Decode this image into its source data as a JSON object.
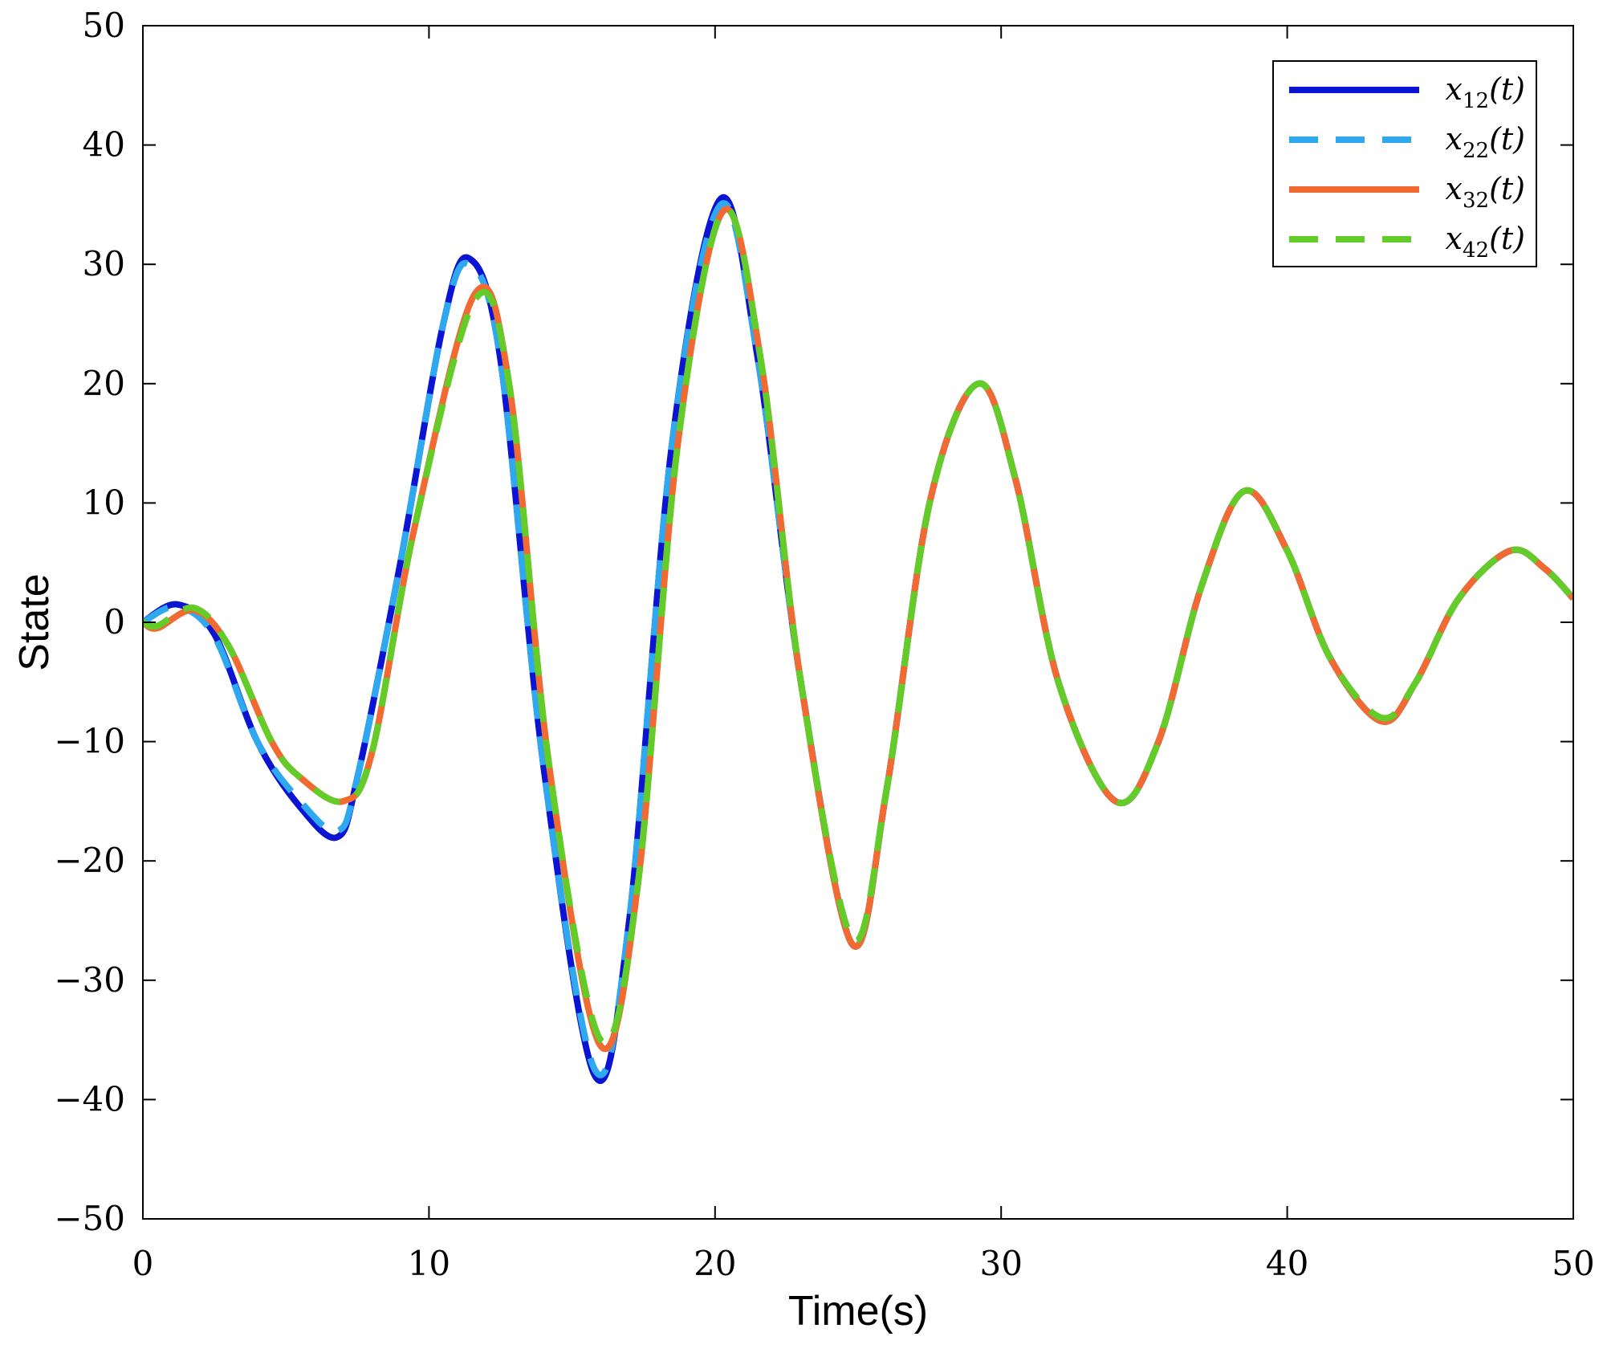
{
  "chart_data": {
    "type": "line",
    "xlabel": "Time(s)",
    "ylabel": "State",
    "xlim": [
      0,
      50
    ],
    "ylim": [
      -50,
      50
    ],
    "xticks": [
      "0",
      "10",
      "20",
      "30",
      "40",
      "50"
    ],
    "yticks": [
      "50",
      "40",
      "30",
      "20",
      "10",
      "0",
      "−10",
      "−20",
      "−30",
      "−40",
      "−50"
    ],
    "grid": false,
    "legend_position": "top-right",
    "series": [
      {
        "name": "x12(t)",
        "label_main": "x",
        "label_sub": "12",
        "label_tail": "(t)",
        "color": "#0a14d2",
        "dash": "solid",
        "x": [
          0,
          1.2,
          2.5,
          4,
          5.5,
          6.8,
          7.5,
          9,
          10.5,
          11.4,
          12.5,
          14,
          15.8,
          17,
          18.5,
          20.2,
          21.5,
          23,
          24.8,
          26,
          27.5,
          29.2,
          30.5,
          32,
          34,
          35.5,
          37,
          38.5,
          40,
          41.5,
          43.3,
          44.5,
          46,
          47.8,
          49,
          50
        ],
        "y": [
          0,
          1.5,
          -1,
          -10,
          -15.5,
          -18,
          -13,
          5,
          25,
          30.5,
          22,
          -12,
          -38,
          -25,
          15,
          35.5,
          22,
          -5,
          -27,
          -14,
          10,
          20,
          12,
          -5,
          -15,
          -10,
          3,
          11,
          6,
          -3,
          -8.3,
          -5,
          2,
          6,
          4.5,
          2
        ]
      },
      {
        "name": "x22(t)",
        "label_main": "x",
        "label_sub": "22",
        "label_tail": "(t)",
        "color": "#2ea8ee",
        "dash": "dashed",
        "x": [
          0,
          1.2,
          2.5,
          4,
          5.5,
          6.8,
          7.5,
          9,
          10.5,
          11.4,
          12.5,
          14,
          15.8,
          17,
          18.5,
          20.2,
          21.5,
          23,
          24.8,
          26,
          27.5,
          29.2,
          30.5,
          32,
          34,
          35.5,
          37,
          38.5,
          40,
          41.5,
          43.3,
          44.5,
          46,
          47.8,
          49,
          50
        ],
        "y": [
          0,
          1.3,
          -1.2,
          -10,
          -15,
          -17.5,
          -13,
          5,
          25,
          30,
          22,
          -12,
          -37.5,
          -25,
          15,
          35,
          22,
          -5,
          -27,
          -14,
          10,
          20,
          12,
          -5,
          -15,
          -10,
          3,
          11,
          6,
          -3,
          -8.3,
          -5,
          2,
          6,
          4.5,
          2
        ]
      },
      {
        "name": "x32(t)",
        "label_main": "x",
        "label_sub": "32",
        "label_tail": "(t)",
        "color": "#f06a32",
        "dash": "solid",
        "x": [
          0,
          0.5,
          1.8,
          3,
          4.5,
          5.5,
          7,
          8,
          9.5,
          11.6,
          12.8,
          14.2,
          16,
          17.3,
          18.7,
          20.3,
          21.6,
          23,
          24.8,
          26,
          27.5,
          29.2,
          30.5,
          32,
          34,
          35.5,
          37,
          38.5,
          40,
          41.5,
          43.3,
          44.5,
          46,
          47.8,
          49,
          50
        ],
        "y": [
          0,
          -0.5,
          1,
          -2,
          -10,
          -13,
          -15,
          -11,
          8,
          27.5,
          20,
          -12,
          -35.5,
          -22,
          15,
          34.5,
          22,
          -5,
          -27,
          -14,
          10,
          20,
          12,
          -5,
          -15,
          -10,
          3,
          11,
          6,
          -3,
          -8.3,
          -5,
          2,
          6,
          4.5,
          2
        ]
      },
      {
        "name": "x42(t)",
        "label_main": "x",
        "label_sub": "42",
        "label_tail": "(t)",
        "color": "#63cc29",
        "dash": "dashed",
        "x": [
          0,
          0.5,
          1.8,
          3,
          4.5,
          5.5,
          7,
          8,
          9.5,
          11.6,
          12.8,
          14.2,
          16,
          17.3,
          18.7,
          20.3,
          21.6,
          23,
          24.8,
          26,
          27.5,
          29.2,
          30.5,
          32,
          34,
          35.5,
          37,
          38.5,
          40,
          41.5,
          43.3,
          44.5,
          46,
          47.8,
          49,
          50
        ],
        "y": [
          0,
          -0.3,
          1.2,
          -2,
          -10,
          -13,
          -15,
          -11,
          8,
          27,
          20,
          -12,
          -35,
          -22,
          15,
          34.5,
          22,
          -5,
          -26.5,
          -14,
          10,
          20,
          12,
          -5,
          -15,
          -10,
          3,
          11,
          6,
          -3,
          -8,
          -5,
          2,
          6,
          4.5,
          2
        ]
      }
    ]
  }
}
